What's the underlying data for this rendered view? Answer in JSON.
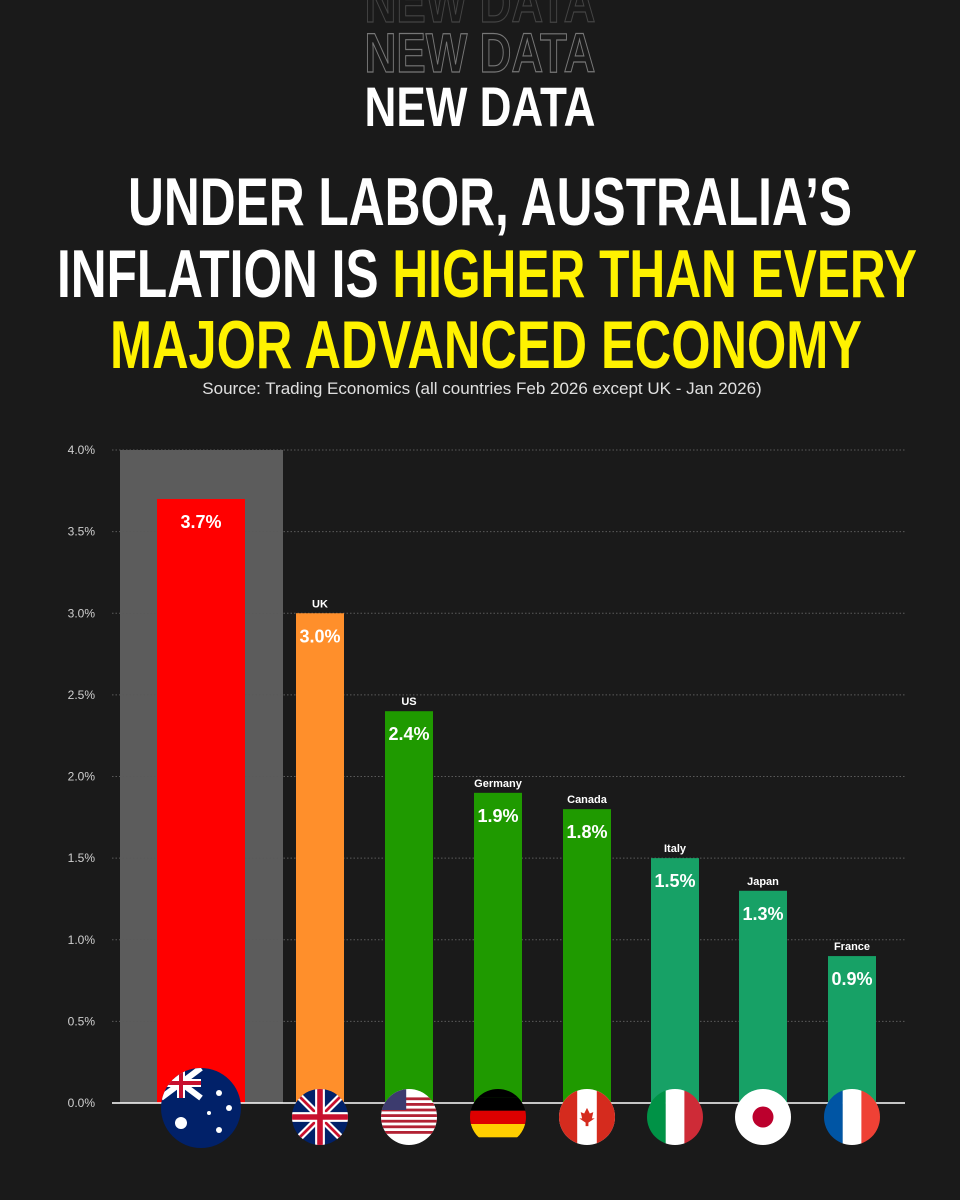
{
  "chart_data": {
    "type": "bar",
    "title": "NEW DATA",
    "headline": [
      {
        "text": "UNDER LABOR, AUSTRALIA’S",
        "color": "#ffffff"
      },
      {
        "text": "INFLATION IS ",
        "color": "#ffffff"
      },
      {
        "text": "HIGHER THAN EVERY",
        "color": "#fff200"
      },
      {
        "text": "MAJOR ADVANCED ECONOMY",
        "color": "#fff200"
      }
    ],
    "subtitle": "Source: Trading Economics (all countries Feb 2026 except UK - Jan 2026)",
    "categories": [
      null,
      "UK",
      "US",
      "Germany",
      "Canada",
      "Italy",
      "Japan",
      "France"
    ],
    "values": [
      3.7,
      3.0,
      2.4,
      1.9,
      1.8,
      1.5,
      1.3,
      0.9
    ],
    "value_labels": [
      "3.7%",
      "3.0%",
      "2.4%",
      "1.9%",
      "1.8%",
      "1.5%",
      "1.3%",
      "0.9%"
    ],
    "colors": [
      "#ff0000",
      "#ff8f2b",
      "#1f9a00",
      "#1f9a00",
      "#1f9a00",
      "#17a166",
      "#17a166",
      "#17a166"
    ],
    "ylim": [
      0,
      4
    ],
    "yticks": [
      {
        "value": 0,
        "label": "0.0%"
      },
      {
        "value": 0.5,
        "label": "0.5%"
      },
      {
        "value": 1,
        "label": "1.0%"
      },
      {
        "value": 1.5,
        "label": "1.5%"
      },
      {
        "value": 2,
        "label": "2.0%"
      },
      {
        "value": 2.5,
        "label": "2.5%"
      },
      {
        "value": 3,
        "label": "3.0%"
      },
      {
        "value": 3.5,
        "label": "3.5%"
      },
      {
        "value": 4,
        "label": "4.0%"
      }
    ],
    "grid": true
  }
}
